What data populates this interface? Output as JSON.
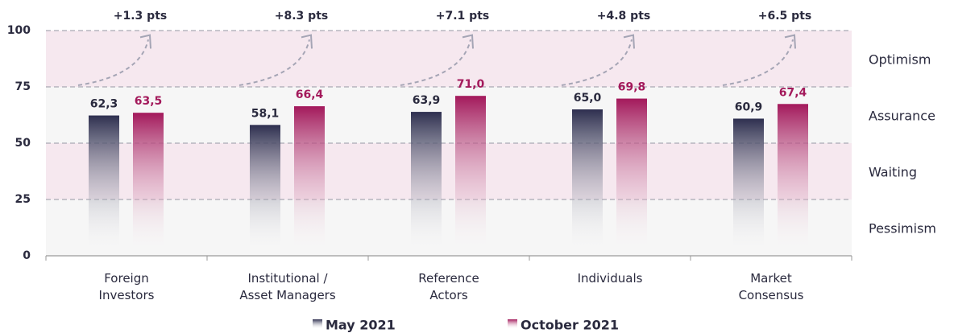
{
  "chart_data": {
    "type": "bar",
    "categories": [
      [
        "Foreign",
        "Investors"
      ],
      [
        "Institutional /",
        "Asset Managers"
      ],
      [
        "Reference",
        "Actors"
      ],
      [
        "Individuals"
      ],
      [
        "Market",
        "Consensus"
      ]
    ],
    "series": [
      {
        "name": "May 2021",
        "color": "#2e2f4f",
        "values": [
          62.3,
          58.1,
          63.9,
          65.0,
          60.9
        ],
        "value_labels": [
          "62,3",
          "58,1",
          "63,9",
          "65,0",
          "60,9"
        ]
      },
      {
        "name": "October 2021",
        "color": "#a3195b",
        "values": [
          63.5,
          66.4,
          71.0,
          69.8,
          67.4
        ],
        "value_labels": [
          "63,5",
          "66,4",
          "71,0",
          "69,8",
          "67,4"
        ]
      }
    ],
    "annotations": [
      "+1.3 pts",
      "+8.3 pts",
      "+7.1 pts",
      "+4.8 pts",
      "+6.5 pts"
    ],
    "bands": [
      {
        "label": "Optimism",
        "from": 75,
        "to": 100,
        "color": "#f6e8ef"
      },
      {
        "label": "Assurance",
        "from": 50,
        "to": 75,
        "color": "#f6f6f6"
      },
      {
        "label": "Waiting",
        "from": 25,
        "to": 50,
        "color": "#f6e8ef"
      },
      {
        "label": "Pessimism",
        "from": 0,
        "to": 25,
        "color": "#f6f6f6"
      }
    ],
    "ylim": [
      0,
      100
    ],
    "yticks": [
      0,
      25,
      50,
      75,
      100
    ],
    "grid": true,
    "legend": "bottom"
  }
}
